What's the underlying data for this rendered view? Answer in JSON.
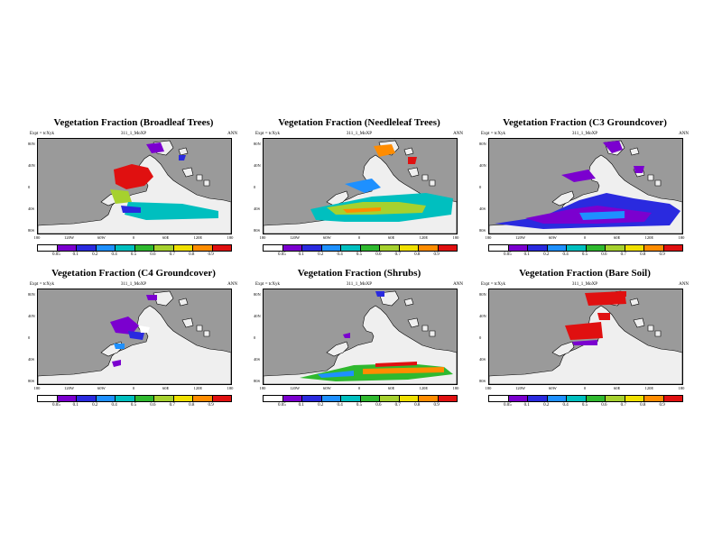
{
  "colorbar": {
    "colors": [
      "#ffffff",
      "#7b00cf",
      "#2a2adf",
      "#1e90ff",
      "#00bfbf",
      "#2fb92f",
      "#a6d12e",
      "#f0e000",
      "#ff8c00",
      "#e01010"
    ]
  },
  "map_colors": {
    "ocean": "#9a9a9a",
    "land": "#efefef",
    "coast": "#000000"
  },
  "panels": [
    {
      "title": "Vegetation Fraction (Broadleaf Trees)",
      "expt": "Expt = tcXyk",
      "run": "311_1_MoXP",
      "season": "ANN",
      "ylabels": [
        "80N",
        "40N",
        "0",
        "40S",
        "80S"
      ],
      "xlabels": [
        "180",
        "120W",
        "60W",
        "0",
        "60E",
        "120E",
        "180"
      ],
      "clabels": [
        "0.05",
        "0.1",
        "0.2",
        "0.4",
        "0.5",
        "0.6",
        "0.7",
        "0.8",
        "0.9"
      ]
    },
    {
      "title": "Vegetation Fraction (Needleleaf Trees)",
      "expt": "Expt = tcXyk",
      "run": "311_1_MoXP",
      "season": "ANN",
      "ylabels": [
        "80N",
        "40N",
        "0",
        "40S",
        "80S"
      ],
      "xlabels": [
        "180",
        "120W",
        "60W",
        "0",
        "60E",
        "120E",
        "180"
      ],
      "clabels": [
        "0.05",
        "0.1",
        "0.2",
        "0.4",
        "0.5",
        "0.6",
        "0.7",
        "0.8",
        "0.9"
      ]
    },
    {
      "title": "Vegetation Fraction (C3 Groundcover)",
      "expt": "Expt = tcXyk",
      "run": "311_1_MoXP",
      "season": "ANN",
      "ylabels": [
        "80N",
        "40N",
        "0",
        "40S",
        "80S"
      ],
      "xlabels": [
        "180",
        "120W",
        "60W",
        "0",
        "60E",
        "120E",
        "180"
      ],
      "clabels": [
        "0.05",
        "0.1",
        "0.2",
        "0.4",
        "0.5",
        "0.6",
        "0.7",
        "0.8",
        "0.9"
      ]
    },
    {
      "title": "Vegetation Fraction (C4 Groundcover)",
      "expt": "Expt = tcXyk",
      "run": "311_1_MoXP",
      "season": "ANN",
      "ylabels": [
        "80N",
        "40N",
        "0",
        "40S",
        "80S"
      ],
      "xlabels": [
        "180",
        "120W",
        "60W",
        "0",
        "60E",
        "120E",
        "180"
      ],
      "clabels": [
        "0.05",
        "0.1",
        "0.2",
        "0.4",
        "0.5",
        "0.6",
        "0.7",
        "0.8",
        "0.9"
      ]
    },
    {
      "title": "Vegetation Fraction (Shrubs)",
      "expt": "Expt = tcXyk",
      "run": "311_1_MoXP",
      "season": "ANN",
      "ylabels": [
        "80N",
        "40N",
        "0",
        "40S",
        "80S"
      ],
      "xlabels": [
        "180",
        "120W",
        "60W",
        "0",
        "60E",
        "120E",
        "180"
      ],
      "clabels": [
        "0.05",
        "0.1",
        "0.2",
        "0.4",
        "0.5",
        "0.6",
        "0.7",
        "0.8",
        "0.9"
      ]
    },
    {
      "title": "Vegetation Fraction (Bare Soil)",
      "expt": "Expt = tcXyk",
      "run": "311_1_MoXP",
      "season": "ANN",
      "ylabels": [
        "80N",
        "40N",
        "0",
        "40S",
        "80S"
      ],
      "xlabels": [
        "180",
        "120W",
        "60W",
        "0",
        "60E",
        "120E",
        "180"
      ],
      "clabels": [
        "0.05",
        "0.1",
        "0.2",
        "0.4",
        "0.5",
        "0.6",
        "0.7",
        "0.8",
        "0.9"
      ]
    }
  ]
}
